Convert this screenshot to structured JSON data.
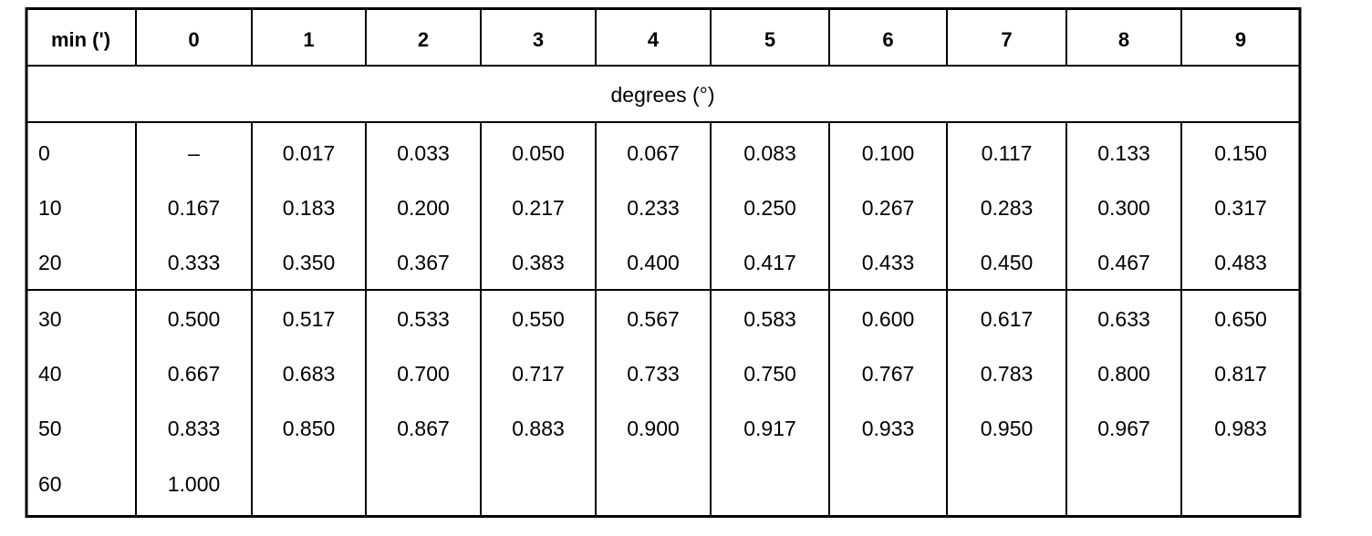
{
  "table": {
    "header": [
      "min (')",
      "0",
      "1",
      "2",
      "3",
      "4",
      "5",
      "6",
      "7",
      "8",
      "9"
    ],
    "subheader": "degrees (°)",
    "groups": [
      [
        [
          "0",
          "–",
          "0.017",
          "0.033",
          "0.050",
          "0.067",
          "0.083",
          "0.100",
          "0.117",
          "0.133",
          "0.150"
        ],
        [
          "10",
          "0.167",
          "0.183",
          "0.200",
          "0.217",
          "0.233",
          "0.250",
          "0.267",
          "0.283",
          "0.300",
          "0.317"
        ],
        [
          "20",
          "0.333",
          "0.350",
          "0.367",
          "0.383",
          "0.400",
          "0.417",
          "0.433",
          "0.450",
          "0.467",
          "0.483"
        ]
      ],
      [
        [
          "30",
          "0.500",
          "0.517",
          "0.533",
          "0.550",
          "0.567",
          "0.583",
          "0.600",
          "0.617",
          "0.633",
          "0.650"
        ],
        [
          "40",
          "0.667",
          "0.683",
          "0.700",
          "0.717",
          "0.733",
          "0.750",
          "0.767",
          "0.783",
          "0.800",
          "0.817"
        ],
        [
          "50",
          "0.833",
          "0.850",
          "0.867",
          "0.883",
          "0.900",
          "0.917",
          "0.933",
          "0.950",
          "0.967",
          "0.983"
        ],
        [
          "60",
          "1.000"
        ]
      ]
    ]
  }
}
